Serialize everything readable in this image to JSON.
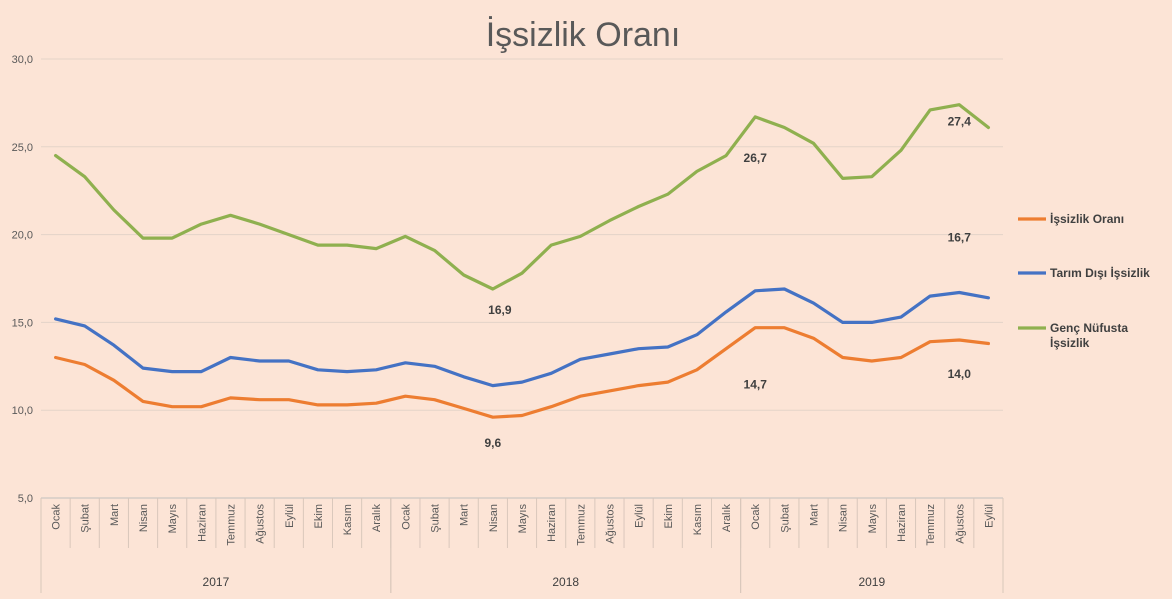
{
  "chart_data": {
    "type": "line",
    "title": "İşsizlik Oranı",
    "background": "#FCE4D6",
    "ylim": [
      5,
      30
    ],
    "yticks": [
      "5,0",
      "10,0",
      "15,0",
      "20,0",
      "25,0",
      "30,0"
    ],
    "ytick_values": [
      5,
      10,
      15,
      20,
      25,
      30
    ],
    "categories": [
      "Ocak",
      "Şubat",
      "Mart",
      "Nisan",
      "Mayıs",
      "Haziran",
      "Temmuz",
      "Ağustos",
      "Eylül",
      "Ekim",
      "Kasım",
      "Aralık",
      "Ocak",
      "Şubat",
      "Mart",
      "Nisan",
      "Mayıs",
      "Haziran",
      "Temmuz",
      "Ağustos",
      "Eylül",
      "Ekim",
      "Kasım",
      "Aralık",
      "Ocak",
      "Şubat",
      "Mart",
      "Nisan",
      "Mayıs",
      "Haziran",
      "Temmuz",
      "Ağustos",
      "Eylül"
    ],
    "years": [
      {
        "label": "2017",
        "start": 0,
        "end": 11
      },
      {
        "label": "2018",
        "start": 12,
        "end": 23
      },
      {
        "label": "2019",
        "start": 24,
        "end": 32
      }
    ],
    "series": [
      {
        "name": "İşsizlik Oranı",
        "color": "#ED7D31",
        "values": [
          13.0,
          12.6,
          11.7,
          10.5,
          10.2,
          10.2,
          10.7,
          10.6,
          10.6,
          10.3,
          10.3,
          10.4,
          10.8,
          10.6,
          10.1,
          9.6,
          9.7,
          10.2,
          10.8,
          11.1,
          11.4,
          11.6,
          12.3,
          13.5,
          14.7,
          14.7,
          14.1,
          13.0,
          12.8,
          13.0,
          13.9,
          14.0,
          13.8
        ]
      },
      {
        "name": "Tarım Dışı İşsizlik",
        "color": "#4472C4",
        "values": [
          15.2,
          14.8,
          13.7,
          12.4,
          12.2,
          12.2,
          13.0,
          12.8,
          12.8,
          12.3,
          12.2,
          12.3,
          12.7,
          12.5,
          11.9,
          11.4,
          11.6,
          12.1,
          12.9,
          13.2,
          13.5,
          13.6,
          14.3,
          15.6,
          16.8,
          16.9,
          16.1,
          15.0,
          15.0,
          15.3,
          16.5,
          16.7,
          16.4
        ]
      },
      {
        "name": "Genç Nüfusta İşsizlik",
        "legend_lines": [
          "Genç Nüfusta",
          "İşsizlik"
        ],
        "color": "#8FB04F",
        "values": [
          24.5,
          23.3,
          21.4,
          19.8,
          19.8,
          20.6,
          21.1,
          20.6,
          20.0,
          19.4,
          19.4,
          19.2,
          19.9,
          19.1,
          17.7,
          16.9,
          17.8,
          19.4,
          19.9,
          20.8,
          21.6,
          22.3,
          23.6,
          24.5,
          26.7,
          26.1,
          25.2,
          23.2,
          23.3,
          24.8,
          27.1,
          27.4,
          26.1
        ]
      }
    ],
    "annotations": [
      {
        "text": "26,7",
        "series": 2,
        "index": 24
      },
      {
        "text": "27,4",
        "series": 2,
        "index": 31
      },
      {
        "text": "16,9",
        "series": 2,
        "index": 15
      },
      {
        "text": "16,7",
        "series": 1,
        "index": 31
      },
      {
        "text": "14,7",
        "series": 0,
        "index": 24
      },
      {
        "text": "14,0",
        "series": 0,
        "index": 31
      },
      {
        "text": "9,6",
        "series": 0,
        "index": 15
      }
    ]
  }
}
